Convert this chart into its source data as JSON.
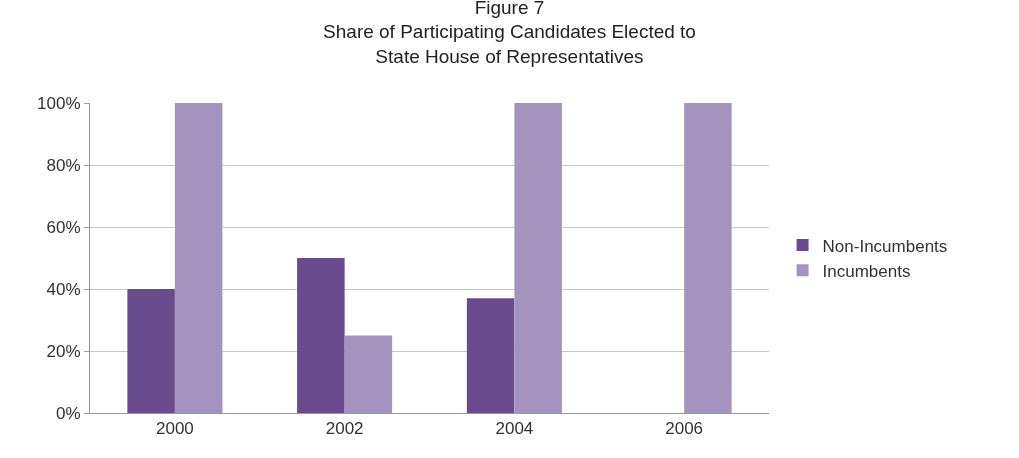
{
  "chart_data": {
    "type": "bar",
    "title": "Figure 7\nShare of Participating Candidates Elected to\nState House of Representatives",
    "categories": [
      "2000",
      "2002",
      "2004",
      "2006"
    ],
    "series": [
      {
        "name": "Non-Incumbents",
        "color": "#6a4c8e",
        "values": [
          40,
          50,
          37,
          0
        ]
      },
      {
        "name": "Incumbents",
        "color": "#a593bf",
        "values": [
          100,
          25,
          100,
          100
        ]
      }
    ],
    "ylim": [
      0,
      100
    ],
    "yticks": [
      {
        "value": 0,
        "label": "0%"
      },
      {
        "value": 20,
        "label": "20%"
      },
      {
        "value": 40,
        "label": "40%"
      },
      {
        "value": 60,
        "label": "60%"
      },
      {
        "value": 80,
        "label": "80%"
      },
      {
        "value": 100,
        "label": "100%"
      }
    ],
    "grid": "y",
    "legend": "right"
  }
}
